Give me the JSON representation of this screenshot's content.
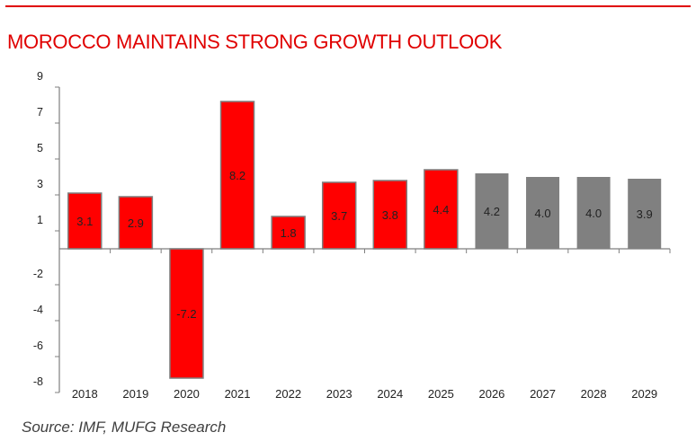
{
  "header": {
    "title": "MOROCCO MAINTAINS STRONG GROWTH OUTLOOK"
  },
  "footer": {
    "source": "Source: IMF, MUFG Research"
  },
  "colors": {
    "accent": "#e00000",
    "actual": "#ff0000",
    "forecast": "#808080",
    "border": "#7f7f7f"
  },
  "chart_data": {
    "type": "bar",
    "title": "MOROCCO MAINTAINS STRONG GROWTH OUTLOOK",
    "xlabel": "",
    "ylabel": "",
    "categories": [
      "2018",
      "2019",
      "2020",
      "2021",
      "2022",
      "2023",
      "2024",
      "2025",
      "2026",
      "2027",
      "2028",
      "2029"
    ],
    "values": [
      3.1,
      2.9,
      -7.2,
      8.2,
      1.8,
      3.7,
      3.8,
      4.4,
      4.2,
      4.0,
      4.0,
      3.9
    ],
    "labels": [
      "3.1",
      "2.9",
      "-7.2",
      "8.2",
      "1.8",
      "3.7",
      "3.8",
      "4.4",
      "4.2",
      "4.0",
      "4.0",
      "3.9"
    ],
    "forecast": [
      false,
      false,
      false,
      false,
      false,
      false,
      false,
      false,
      true,
      true,
      true,
      true
    ],
    "ylim": [
      -8,
      9
    ],
    "yticks": [
      "9",
      "7",
      "5",
      "3",
      "1",
      "-2",
      "-4",
      "-6",
      "-8"
    ],
    "grid": false,
    "legend": "none"
  }
}
